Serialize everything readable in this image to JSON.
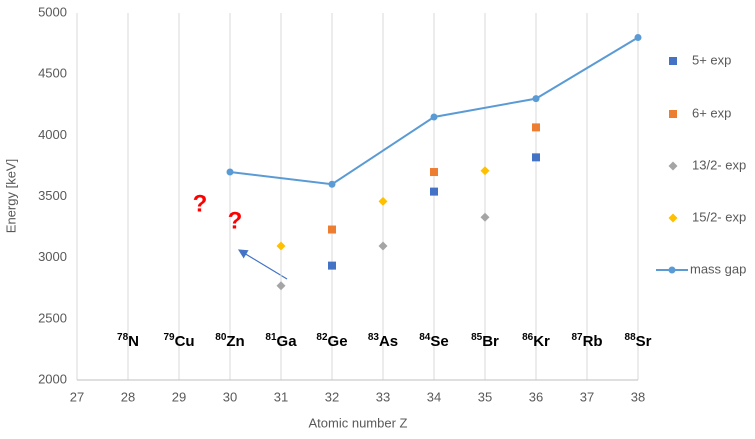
{
  "chart_data": {
    "type": "scatter",
    "xlabel": "Atomic number Z",
    "ylabel": "Energy [keV]",
    "xlim": [
      27,
      38
    ],
    "xticks": [
      27,
      28,
      29,
      30,
      31,
      32,
      33,
      34,
      35,
      36,
      37,
      38
    ],
    "ylim": [
      2000,
      5000
    ],
    "yticks": [
      2000,
      2500,
      3000,
      3500,
      4000,
      4500,
      5000
    ],
    "grid": "x",
    "legend": "right",
    "series": [
      {
        "name": "5+ exp",
        "color": "#4472c4",
        "marker": "square",
        "x": [
          32,
          34,
          36
        ],
        "values": [
          2935,
          3540,
          3820
        ]
      },
      {
        "name": "6+ exp",
        "color": "#ed7d31",
        "marker": "square",
        "x": [
          32,
          34,
          36
        ],
        "values": [
          3230,
          3700,
          4065
        ]
      },
      {
        "name": "13/2- exp",
        "color": "#a5a5a5",
        "marker": "diamond",
        "x": [
          31,
          33,
          35
        ],
        "values": [
          2770,
          3095,
          3330
        ]
      },
      {
        "name": "15/2- exp",
        "color": "#ffc000",
        "marker": "diamond",
        "x": [
          31,
          33,
          35
        ],
        "values": [
          3095,
          3460,
          3710
        ]
      },
      {
        "name": "mass gap",
        "color": "#5b9bd5",
        "marker": "circle",
        "line": true,
        "x": [
          30,
          32,
          34,
          36,
          38
        ],
        "values": [
          3700,
          3600,
          4150,
          4300,
          4800
        ]
      }
    ],
    "nuclides": [
      {
        "mass": "78",
        "symbol": "N"
      },
      {
        "mass": "79",
        "symbol": "Cu"
      },
      {
        "mass": "80",
        "symbol": "Zn"
      },
      {
        "mass": "81",
        "symbol": "Ga"
      },
      {
        "mass": "82",
        "symbol": "Ge"
      },
      {
        "mass": "83",
        "symbol": "As"
      },
      {
        "mass": "84",
        "symbol": "Se"
      },
      {
        "mass": "85",
        "symbol": "Br"
      },
      {
        "mass": "86",
        "symbol": "Kr"
      },
      {
        "mass": "87",
        "symbol": "Rb"
      },
      {
        "mass": "88",
        "symbol": "Sr"
      }
    ],
    "question_marks": [
      "?",
      "?"
    ]
  }
}
